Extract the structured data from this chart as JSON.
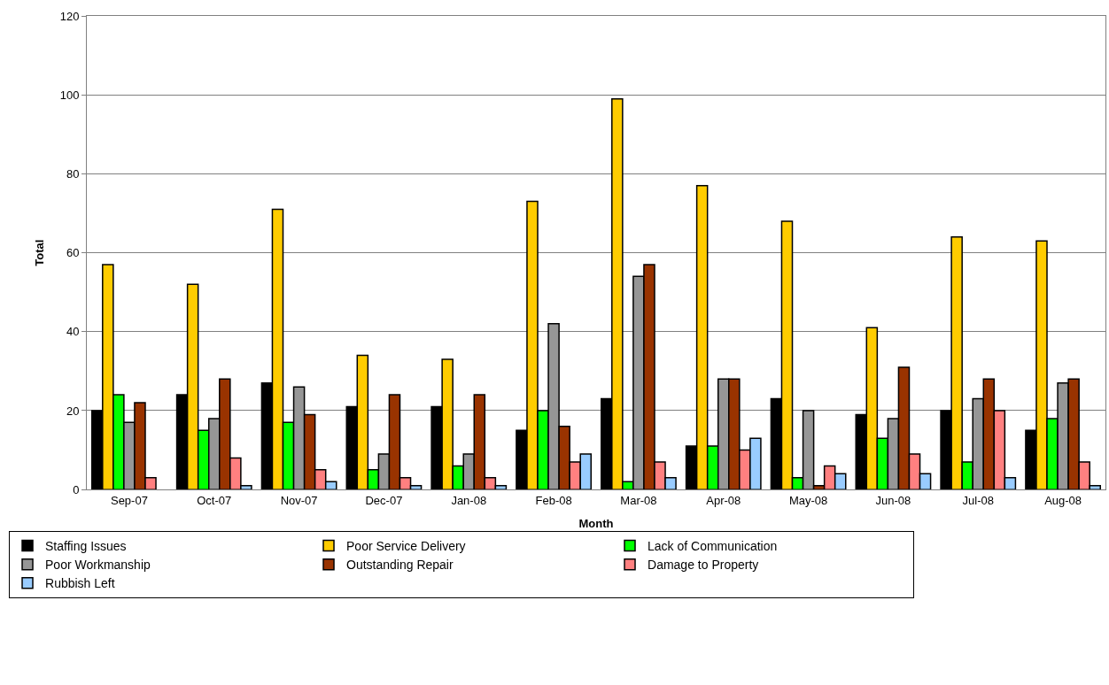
{
  "chart_data": {
    "type": "bar",
    "xlabel": "Month",
    "ylabel": "Total",
    "categories": [
      "Sep-07",
      "Oct-07",
      "Nov-07",
      "Dec-07",
      "Jan-08",
      "Feb-08",
      "Mar-08",
      "Apr-08",
      "May-08",
      "Jun-08",
      "Jul-08",
      "Aug-08"
    ],
    "series": [
      {
        "name": "Staffing Issues",
        "color": "#000000",
        "values": [
          20,
          24,
          27,
          21,
          21,
          15,
          23,
          11,
          23,
          19,
          20,
          15
        ]
      },
      {
        "name": "Poor Service Delivery",
        "color": "#ffcc00",
        "values": [
          57,
          52,
          71,
          34,
          33,
          73,
          99,
          77,
          68,
          41,
          64,
          63
        ]
      },
      {
        "name": "Lack of Communication",
        "color": "#00ff00",
        "values": [
          24,
          15,
          17,
          5,
          6,
          20,
          2,
          11,
          3,
          13,
          7,
          18
        ]
      },
      {
        "name": "Poor Workmanship",
        "color": "#969696",
        "values": [
          17,
          18,
          26,
          9,
          9,
          42,
          54,
          28,
          20,
          18,
          23,
          27
        ]
      },
      {
        "name": "Outstanding Repair",
        "color": "#993300",
        "values": [
          22,
          28,
          19,
          24,
          24,
          16,
          57,
          28,
          1,
          31,
          28,
          28
        ]
      },
      {
        "name": "Damage to Property",
        "color": "#ff8080",
        "values": [
          3,
          8,
          5,
          3,
          3,
          7,
          7,
          10,
          6,
          9,
          20,
          7
        ]
      },
      {
        "name": "Rubbish Left",
        "color": "#99ccff",
        "values": [
          null,
          1,
          2,
          1,
          1,
          9,
          3,
          13,
          4,
          4,
          3,
          1
        ]
      }
    ],
    "ylim": [
      0,
      120
    ],
    "yticks": [
      0,
      20,
      40,
      60,
      80,
      100,
      120
    ],
    "grid": "y",
    "legend": "bottom"
  }
}
